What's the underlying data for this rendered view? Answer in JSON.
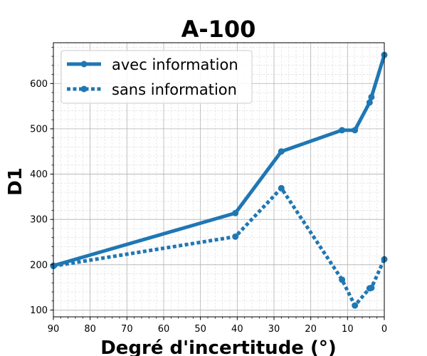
{
  "chart_data": {
    "type": "line",
    "title": "A-100",
    "xlabel": "Degré d'incertitude (°)",
    "ylabel": "D1",
    "xlim": [
      90,
      0
    ],
    "ylim": [
      85,
      690
    ],
    "x_ticks": [
      90,
      80,
      70,
      60,
      50,
      40,
      30,
      20,
      10,
      0
    ],
    "y_ticks": [
      100,
      200,
      300,
      400,
      500,
      600
    ],
    "x_tick_labels": [
      "90",
      "80",
      "70",
      "60",
      "50",
      "40",
      "30",
      "20",
      "10",
      "0"
    ],
    "y_tick_labels": [
      "100",
      "200",
      "300",
      "400",
      "500",
      "600"
    ],
    "grid": "major and minor",
    "legend_position": "top-left",
    "series": [
      {
        "name": "avec information",
        "style": "solid",
        "color": "#1f77b4",
        "x": [
          90,
          40.5,
          28,
          11.5,
          8,
          4,
          3.5,
          0
        ],
        "y": [
          198,
          314,
          450,
          497,
          497,
          558,
          570,
          663
        ]
      },
      {
        "name": "sans information",
        "style": "dotted",
        "color": "#1f77b4",
        "x": [
          90,
          40.5,
          28,
          11.5,
          8,
          4,
          3.5,
          0
        ],
        "y": [
          197,
          262,
          369,
          167,
          110,
          148,
          149,
          212
        ]
      }
    ]
  }
}
